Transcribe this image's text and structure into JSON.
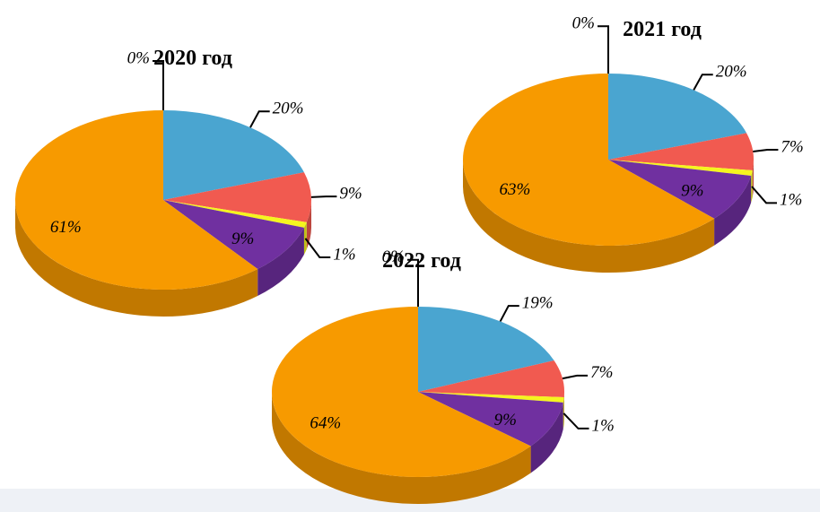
{
  "chart_data": [
    {
      "type": "pie",
      "title": "2020 год",
      "categories": [
        null,
        null,
        null,
        null,
        null,
        null
      ],
      "values": [
        0,
        20,
        9,
        1,
        9,
        61
      ],
      "value_labels": [
        "0%",
        "20%",
        "9%",
        "1%",
        "9%",
        "61%"
      ],
      "colors": [
        "#8fc43a",
        "#4aa5d0",
        "#f15a50",
        "#f5f51e",
        "#7030a0",
        "#f79a00"
      ]
    },
    {
      "type": "pie",
      "title": "2021 год",
      "categories": [
        null,
        null,
        null,
        null,
        null,
        null
      ],
      "values": [
        0,
        20,
        7,
        1,
        9,
        63
      ],
      "value_labels": [
        "0%",
        "20%",
        "7%",
        "1%",
        "9%",
        "63%"
      ],
      "colors": [
        "#8fc43a",
        "#4aa5d0",
        "#f15a50",
        "#f5f51e",
        "#7030a0",
        "#f79a00"
      ]
    },
    {
      "type": "pie",
      "title": "2022 год",
      "categories": [
        null,
        null,
        null,
        null,
        null,
        null
      ],
      "values": [
        0,
        19,
        7,
        1,
        9,
        64
      ],
      "value_labels": [
        "0%",
        "19%",
        "7%",
        "1%",
        "9%",
        "64%"
      ],
      "colors": [
        "#8fc43a",
        "#4aa5d0",
        "#f15a50",
        "#f5f51e",
        "#7030a0",
        "#f79a00"
      ]
    }
  ]
}
